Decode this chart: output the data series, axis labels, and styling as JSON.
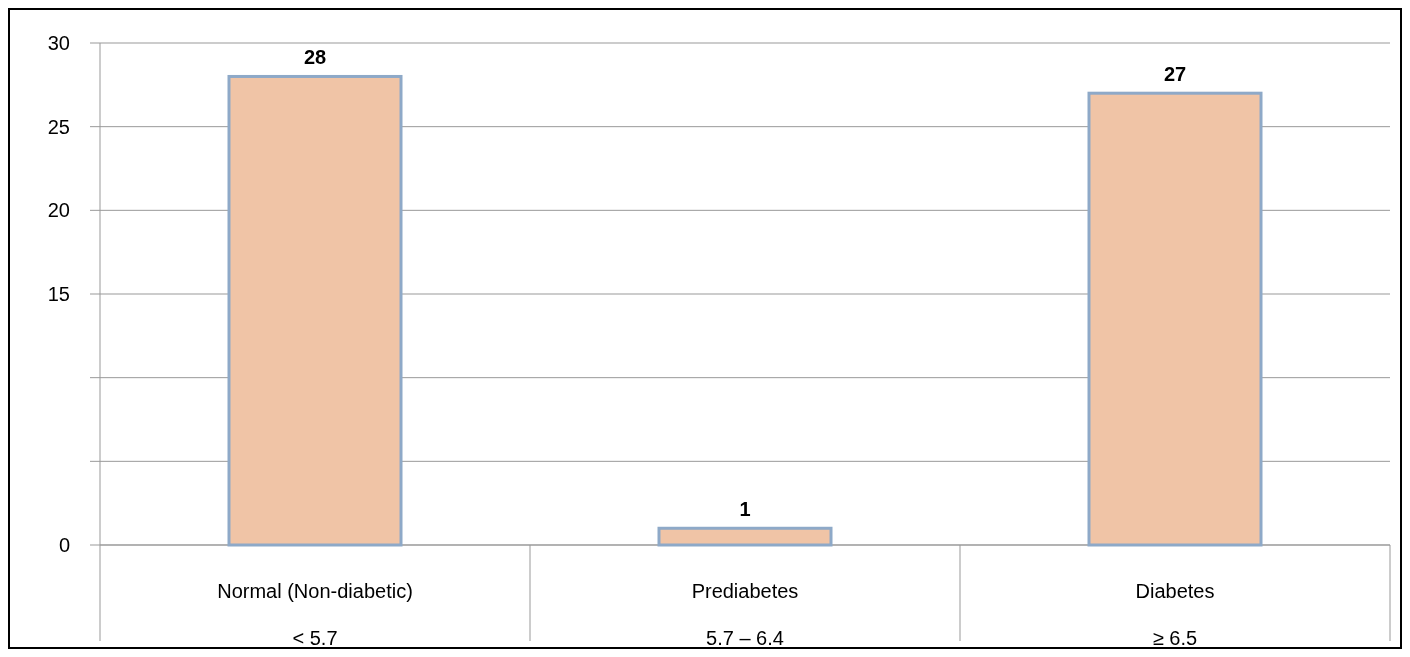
{
  "chart_data": {
    "type": "bar",
    "categories": [
      "Normal (Non-diabetic)\n< 5.7",
      "Prediabetes\n5.7 – 6.4",
      "Diabetes\n≥ 6.5"
    ],
    "values": [
      28,
      1,
      27
    ],
    "color": "#f0c4a6",
    "ylim": [
      0,
      30
    ],
    "yticks": [
      0,
      {
        "value": 5,
        "label": null
      },
      {
        "value": 10,
        "label": null
      },
      15,
      20,
      25,
      30
    ],
    "grid": "y",
    "data_labels": true
  }
}
